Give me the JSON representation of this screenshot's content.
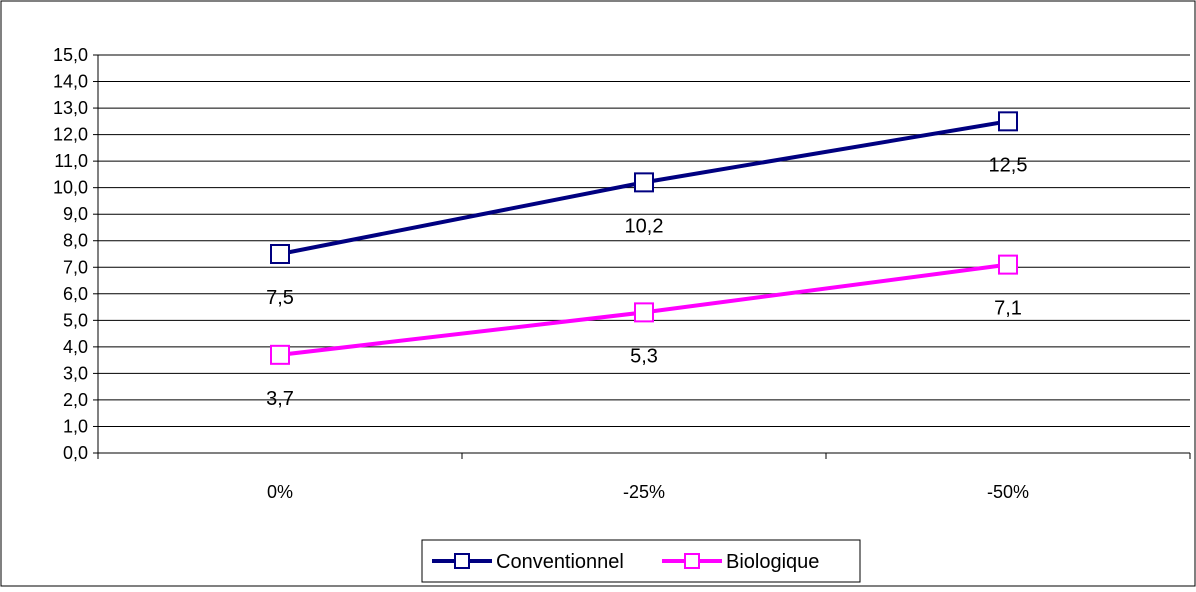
{
  "chart_data": {
    "type": "line",
    "categories": [
      "0%",
      "-25%",
      "-50%"
    ],
    "series": [
      {
        "name": "Conventionnel",
        "values": [
          7.5,
          10.2,
          12.5
        ],
        "labels": [
          "7,5",
          "10,2",
          "12,5"
        ],
        "color": "#000080"
      },
      {
        "name": "Biologique",
        "values": [
          3.7,
          5.3,
          7.1
        ],
        "labels": [
          "3,7",
          "5,3",
          "7,1"
        ],
        "color": "#ff00ff"
      }
    ],
    "ylim": [
      0,
      15
    ],
    "ytick_values": [
      0,
      1,
      2,
      3,
      4,
      5,
      6,
      7,
      8,
      9,
      10,
      11,
      12,
      13,
      14,
      15
    ],
    "ytick_labels": [
      "0,0",
      "1,0",
      "2,0",
      "3,0",
      "4,0",
      "5,0",
      "6,0",
      "7,0",
      "8,0",
      "9,0",
      "10,0",
      "11,0",
      "12,0",
      "13,0",
      "14,0",
      "15,0"
    ],
    "grid": true,
    "legend": "bottom",
    "marker": "square",
    "title": "",
    "xlabel": "",
    "ylabel": ""
  }
}
